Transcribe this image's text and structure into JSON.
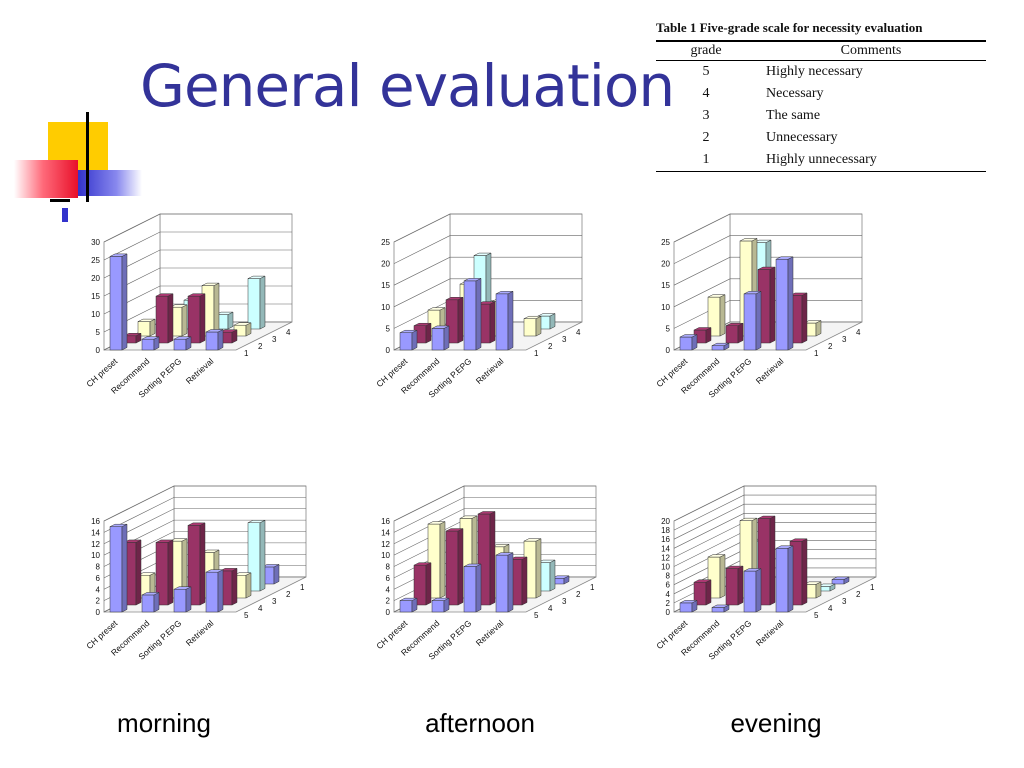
{
  "slide": {
    "title": "General evaluation"
  },
  "table": {
    "caption": "Table 1  Five-grade scale for necessity evaluation",
    "headers": [
      "grade",
      "Comments"
    ],
    "rows": [
      {
        "grade": "5",
        "comment": "Highly necessary"
      },
      {
        "grade": "4",
        "comment": "Necessary"
      },
      {
        "grade": "3",
        "comment": "The same"
      },
      {
        "grade": "2",
        "comment": "Unnecessary"
      },
      {
        "grade": "1",
        "comment": "Highly unnecessary"
      }
    ]
  },
  "period_labels": {
    "morning": "morning",
    "afternoon": "afternoon",
    "evening": "evening"
  },
  "colors": {
    "series_1": "#9999ff",
    "series_2": "#993366",
    "series_3": "#ffffcc",
    "series_4": "#ccffff"
  },
  "chart_data": [
    {
      "type": "bar",
      "categories": [
        "CH preset",
        "Recommend",
        "Sorting P.EPG",
        "Retrieval"
      ],
      "series": [
        {
          "name": "1",
          "values": [
            26,
            3,
            3,
            5
          ]
        },
        {
          "name": "2",
          "values": [
            2,
            13,
            13,
            3
          ]
        },
        {
          "name": "3",
          "values": [
            4,
            8,
            14,
            3
          ]
        },
        {
          "name": "4",
          "values": [
            0,
            8,
            4,
            14
          ]
        }
      ],
      "ylim": [
        0,
        30
      ],
      "yticks": [
        0,
        5,
        10,
        15,
        20,
        25,
        30
      ]
    },
    {
      "type": "bar",
      "categories": [
        "CH preset",
        "Recommend",
        "Sorting P.EPG",
        "Retrieval"
      ],
      "series": [
        {
          "name": "1",
          "values": [
            4,
            5,
            16,
            13
          ]
        },
        {
          "name": "2",
          "values": [
            4,
            10,
            9,
            0
          ]
        },
        {
          "name": "3",
          "values": [
            6,
            12,
            8,
            4
          ]
        },
        {
          "name": "4",
          "values": [
            0,
            17,
            0,
            3
          ]
        }
      ],
      "ylim": [
        0,
        25
      ],
      "yticks": [
        0,
        5,
        10,
        15,
        20,
        25
      ]
    },
    {
      "type": "bar",
      "categories": [
        "CH preset",
        "Recommend",
        "Sorting P.EPG",
        "Retrieval"
      ],
      "series": [
        {
          "name": "1",
          "values": [
            3,
            1,
            13,
            21
          ]
        },
        {
          "name": "2",
          "values": [
            3,
            4,
            17,
            11
          ]
        },
        {
          "name": "3",
          "values": [
            9,
            22,
            0,
            3
          ]
        },
        {
          "name": "4",
          "values": [
            0,
            20,
            0,
            0
          ]
        }
      ],
      "ylim": [
        0,
        25
      ],
      "yticks": [
        0,
        5,
        10,
        15,
        20,
        25
      ]
    },
    {
      "type": "bar",
      "categories": [
        "CH preset",
        "Recommend",
        "Sorting P.EPG",
        "Retrieval"
      ],
      "series": [
        {
          "name": "5",
          "values": [
            15,
            3,
            4,
            7
          ]
        },
        {
          "name": "4",
          "values": [
            11,
            11,
            14,
            6
          ]
        },
        {
          "name": "3",
          "values": [
            4,
            10,
            8,
            4
          ]
        },
        {
          "name": "2",
          "values": [
            0,
            0,
            0,
            12
          ]
        },
        {
          "name": "1",
          "values": [
            0,
            0,
            0,
            3
          ]
        }
      ],
      "ylim": [
        0,
        16
      ],
      "yticks": [
        0,
        2,
        4,
        6,
        8,
        10,
        12,
        14,
        16
      ]
    },
    {
      "type": "bar",
      "categories": [
        "CH preset",
        "Recommend",
        "Sorting P.EPG",
        "Retrieval"
      ],
      "series": [
        {
          "name": "5",
          "values": [
            2,
            2,
            8,
            10
          ]
        },
        {
          "name": "4",
          "values": [
            7,
            13,
            16,
            8
          ]
        },
        {
          "name": "3",
          "values": [
            13,
            14,
            9,
            10
          ]
        },
        {
          "name": "2",
          "values": [
            0,
            0,
            0,
            5
          ]
        },
        {
          "name": "1",
          "values": [
            0,
            0,
            0,
            1
          ]
        }
      ],
      "ylim": [
        0,
        16
      ],
      "yticks": [
        0,
        2,
        4,
        6,
        8,
        10,
        12,
        14,
        16
      ]
    },
    {
      "type": "bar",
      "categories": [
        "CH preset",
        "Recommend",
        "Sorting P.EPG",
        "Retrieval"
      ],
      "series": [
        {
          "name": "5",
          "values": [
            2,
            1,
            9,
            14
          ]
        },
        {
          "name": "4",
          "values": [
            5,
            8,
            19,
            14
          ]
        },
        {
          "name": "3",
          "values": [
            9,
            17,
            0,
            3
          ]
        },
        {
          "name": "2",
          "values": [
            0,
            11,
            0,
            1
          ]
        },
        {
          "name": "1",
          "values": [
            0,
            0,
            0,
            1
          ]
        }
      ],
      "ylim": [
        0,
        20
      ],
      "yticks": [
        0,
        2,
        4,
        6,
        8,
        10,
        12,
        14,
        16,
        18,
        20
      ]
    }
  ]
}
